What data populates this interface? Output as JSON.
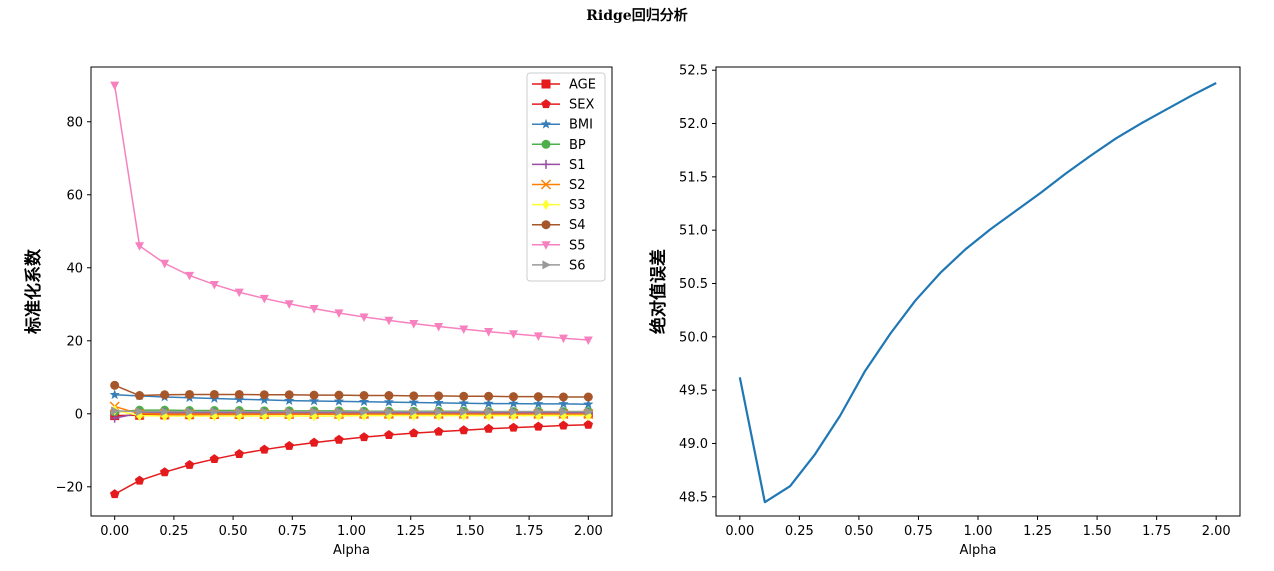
{
  "suptitle": "Ridge回归分析",
  "chart_data": [
    {
      "type": "line",
      "xlabel": "Alpha",
      "ylabel": "标准化系数",
      "xlim": [
        -0.1,
        2.1
      ],
      "ylim": [
        -28,
        95
      ],
      "xticks": [
        "0.00",
        "0.25",
        "0.50",
        "0.75",
        "1.00",
        "1.25",
        "1.50",
        "1.75",
        "2.00"
      ],
      "yticks": [
        "−20",
        "0",
        "20",
        "40",
        "60",
        "80"
      ],
      "legend_position": "top-right",
      "x": [
        0.0,
        0.105,
        0.211,
        0.316,
        0.421,
        0.526,
        0.632,
        0.737,
        0.842,
        0.947,
        1.053,
        1.158,
        1.263,
        1.368,
        1.474,
        1.579,
        1.684,
        1.789,
        1.895,
        2.0
      ],
      "series": [
        {
          "name": "AGE",
          "color": "#e41a1c",
          "marker": "square",
          "values": [
            -0.5,
            -0.4,
            -0.3,
            -0.25,
            -0.2,
            -0.18,
            -0.15,
            -0.12,
            -0.1,
            -0.08,
            -0.06,
            -0.05,
            -0.04,
            -0.03,
            -0.02,
            -0.01,
            0.0,
            0.0,
            0.01,
            0.02
          ]
        },
        {
          "name": "SEX",
          "color": "#e41a1c",
          "marker": "pentagon",
          "values": [
            -22.0,
            -18.3,
            -16.0,
            -14.0,
            -12.4,
            -11.0,
            -9.8,
            -8.8,
            -7.9,
            -7.1,
            -6.4,
            -5.8,
            -5.3,
            -4.9,
            -4.5,
            -4.1,
            -3.8,
            -3.5,
            -3.2,
            -3.0
          ]
        },
        {
          "name": "BMI",
          "color": "#377eb8",
          "marker": "star",
          "values": [
            5.2,
            4.9,
            4.6,
            4.4,
            4.2,
            4.0,
            3.8,
            3.6,
            3.5,
            3.4,
            3.3,
            3.2,
            3.1,
            3.0,
            2.9,
            2.8,
            2.8,
            2.7,
            2.7,
            2.6
          ]
        },
        {
          "name": "BP",
          "color": "#4daf4a",
          "marker": "circle",
          "values": [
            0.5,
            1.0,
            1.0,
            0.9,
            0.9,
            0.9,
            0.8,
            0.8,
            0.8,
            0.8,
            0.7,
            0.7,
            0.7,
            0.7,
            0.7,
            0.6,
            0.6,
            0.6,
            0.6,
            0.6
          ]
        },
        {
          "name": "S1",
          "color": "#984ea3",
          "marker": "plus",
          "values": [
            -1.2,
            0.2,
            0.3,
            0.3,
            0.3,
            0.3,
            0.3,
            0.3,
            0.3,
            0.3,
            0.3,
            0.3,
            0.3,
            0.3,
            0.3,
            0.3,
            0.3,
            0.3,
            0.3,
            0.3
          ]
        },
        {
          "name": "S2",
          "color": "#ff7f00",
          "marker": "x",
          "values": [
            2.0,
            0.0,
            -0.1,
            -0.1,
            -0.1,
            -0.1,
            -0.1,
            -0.1,
            -0.1,
            -0.1,
            -0.1,
            -0.1,
            -0.1,
            -0.1,
            -0.1,
            -0.1,
            -0.1,
            -0.1,
            -0.1,
            -0.1
          ]
        },
        {
          "name": "S3",
          "color": "#ffff33",
          "marker": "diamond",
          "values": [
            1.0,
            -0.5,
            -0.6,
            -0.6,
            -0.6,
            -0.6,
            -0.6,
            -0.6,
            -0.6,
            -0.6,
            -0.5,
            -0.5,
            -0.5,
            -0.5,
            -0.5,
            -0.5,
            -0.5,
            -0.5,
            -0.5,
            -0.5
          ]
        },
        {
          "name": "S4",
          "color": "#a65628",
          "marker": "circle",
          "values": [
            7.8,
            5.0,
            5.2,
            5.3,
            5.3,
            5.3,
            5.2,
            5.2,
            5.1,
            5.1,
            5.0,
            5.0,
            4.9,
            4.9,
            4.8,
            4.8,
            4.7,
            4.7,
            4.6,
            4.6
          ]
        },
        {
          "name": "S5",
          "color": "#f781bf",
          "marker": "triangle-down",
          "values": [
            90.0,
            46.0,
            41.2,
            37.9,
            35.4,
            33.3,
            31.6,
            30.1,
            28.8,
            27.6,
            26.5,
            25.6,
            24.7,
            23.9,
            23.2,
            22.5,
            21.9,
            21.3,
            20.7,
            20.2
          ]
        },
        {
          "name": "S6",
          "color": "#999999",
          "marker": "triangle-right",
          "values": [
            0.8,
            0.6,
            0.6,
            0.6,
            0.6,
            0.6,
            0.6,
            0.6,
            0.6,
            0.6,
            0.6,
            0.6,
            0.6,
            0.6,
            0.6,
            0.6,
            0.6,
            0.6,
            0.6,
            0.6
          ]
        }
      ]
    },
    {
      "type": "line",
      "xlabel": "Alpha",
      "ylabel": "绝对值误差",
      "xlim": [
        -0.1,
        2.1
      ],
      "ylim": [
        48.32,
        52.53
      ],
      "xticks": [
        "0.00",
        "0.25",
        "0.50",
        "0.75",
        "1.00",
        "1.25",
        "1.50",
        "1.75",
        "2.00"
      ],
      "yticks": [
        "48.5",
        "49.0",
        "49.5",
        "50.0",
        "50.5",
        "51.0",
        "51.5",
        "52.0",
        "52.5"
      ],
      "color": "#1f77b4",
      "x": [
        0.0,
        0.105,
        0.211,
        0.316,
        0.421,
        0.526,
        0.632,
        0.737,
        0.842,
        0.947,
        1.053,
        1.158,
        1.263,
        1.368,
        1.474,
        1.579,
        1.684,
        1.789,
        1.895,
        2.0
      ],
      "values": [
        49.62,
        48.45,
        48.6,
        48.9,
        49.26,
        49.68,
        50.03,
        50.34,
        50.6,
        50.82,
        51.01,
        51.18,
        51.35,
        51.53,
        51.7,
        51.86,
        52.0,
        52.13,
        52.26,
        52.38
      ]
    }
  ]
}
